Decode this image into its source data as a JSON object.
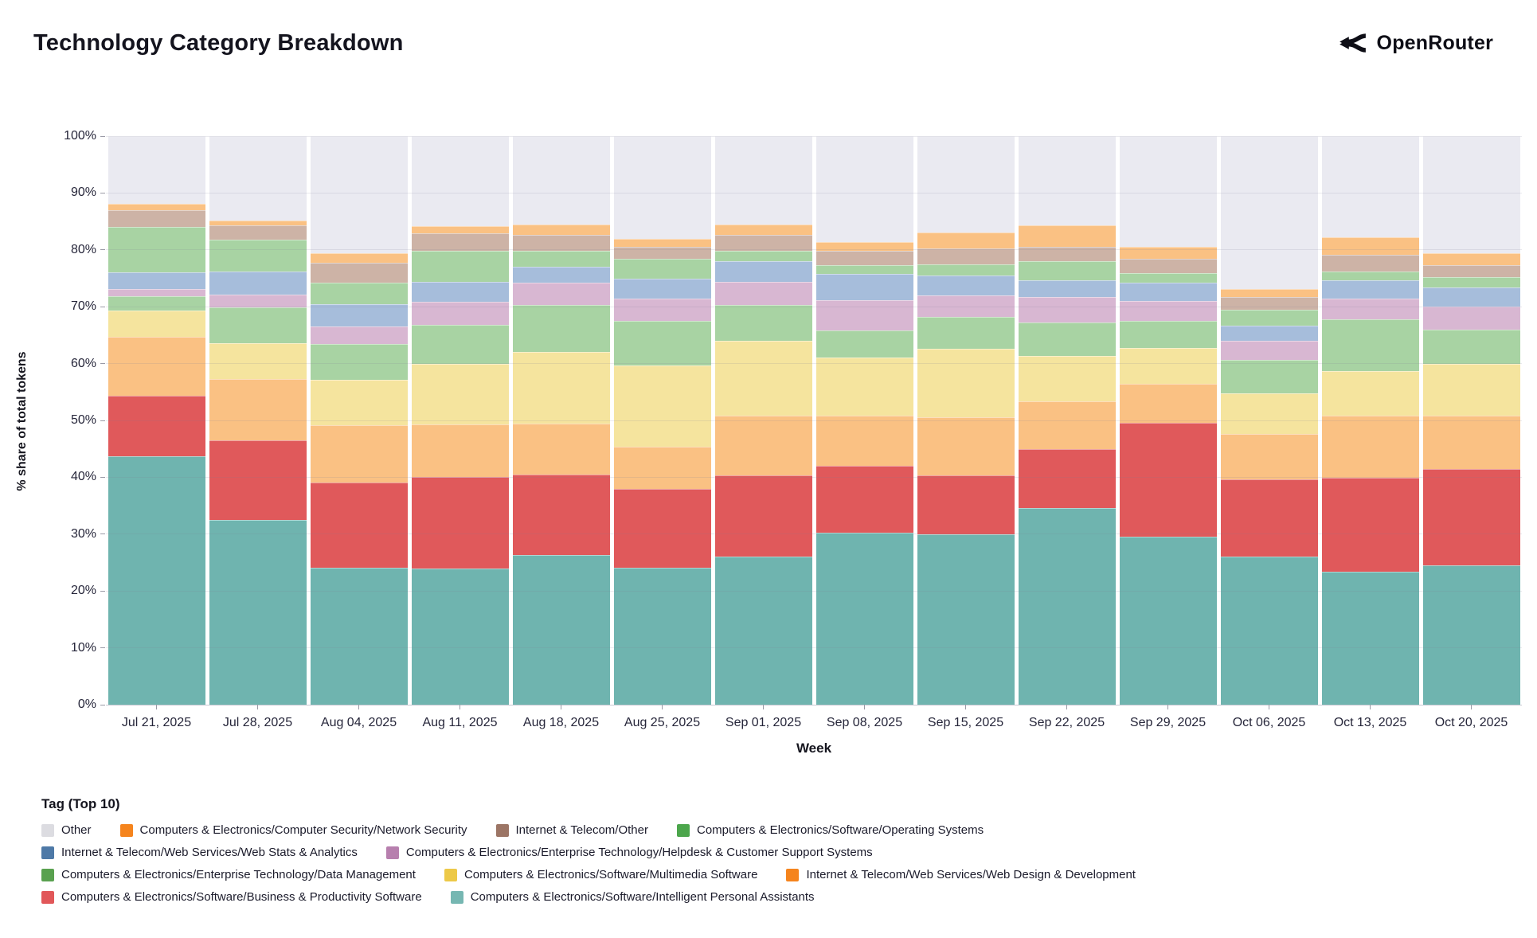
{
  "header": {
    "title": "Technology Category Breakdown",
    "brand": "OpenRouter"
  },
  "chart_data": {
    "type": "bar",
    "stacked": true,
    "normalized": true,
    "xlabel": "Week",
    "ylabel": "% share of total tokens",
    "ylim": [
      0,
      100
    ],
    "grid": true,
    "yticks": [
      "0%",
      "10%",
      "20%",
      "30%",
      "40%",
      "50%",
      "60%",
      "70%",
      "80%",
      "90%",
      "100%"
    ],
    "categories": [
      "Jul 21, 2025",
      "Jul 28, 2025",
      "Aug 04, 2025",
      "Aug 11, 2025",
      "Aug 18, 2025",
      "Aug 25, 2025",
      "Sep 01, 2025",
      "Sep 08, 2025",
      "Sep 15, 2025",
      "Sep 22, 2025",
      "Sep 29, 2025",
      "Oct 06, 2025",
      "Oct 13, 2025",
      "Oct 20, 2025"
    ],
    "series": [
      {
        "key": "ipa",
        "name": "Computers & Electronics/Software/Intelligent Personal Assistants",
        "legend_color": "#76B7B2",
        "bar_color": "#6FB4AF",
        "values": [
          43.7,
          32.5,
          24.1,
          24.0,
          26.3,
          24.1,
          26.0,
          30.3,
          30.0,
          34.6,
          29.5,
          26.0,
          23.4,
          24.5
        ]
      },
      {
        "key": "bp",
        "name": "Computers & Electronics/Software/Business & Productivity Software",
        "legend_color": "#E15759",
        "bar_color": "#E0595B",
        "values": [
          10.7,
          14.0,
          15.0,
          16.0,
          14.2,
          13.8,
          14.3,
          11.7,
          10.3,
          10.3,
          20.0,
          13.6,
          16.5,
          16.9
        ]
      },
      {
        "key": "wd",
        "name": "Internet & Telecom/Web Services/Web Design & Development",
        "legend_color": "#F5841D",
        "bar_color": "#FAC183",
        "values": [
          10.3,
          10.8,
          10.1,
          9.3,
          9.0,
          7.5,
          10.6,
          8.9,
          10.3,
          8.5,
          7.0,
          8.0,
          11.0,
          9.5
        ]
      },
      {
        "key": "mm",
        "name": "Computers & Electronics/Software/Multimedia Software",
        "legend_color": "#EDC948",
        "bar_color": "#F5E49E",
        "values": [
          4.6,
          6.3,
          8.0,
          10.7,
          12.6,
          14.3,
          13.1,
          10.1,
          12.0,
          8.0,
          6.3,
          7.1,
          7.8,
          9.1
        ]
      },
      {
        "key": "dm",
        "name": "Computers & Electronics/Enterprise Technology/Data Management",
        "legend_color": "#59A14F",
        "bar_color": "#A8D3A3",
        "values": [
          2.6,
          6.3,
          6.3,
          6.8,
          8.2,
          7.8,
          6.3,
          4.8,
          5.6,
          5.8,
          4.7,
          6.0,
          9.1,
          5.9
        ]
      },
      {
        "key": "hd",
        "name": "Computers & Electronics/Enterprise Technology/Helpdesk & Customer Support Systems",
        "legend_color": "#B77FAE",
        "bar_color": "#D8B7D2",
        "values": [
          1.2,
          2.2,
          3.0,
          4.0,
          3.9,
          3.9,
          4.1,
          5.4,
          3.8,
          4.5,
          3.5,
          3.3,
          3.6,
          4.1
        ]
      },
      {
        "key": "ws",
        "name": "Internet & Telecom/Web Services/Web Stats & Analytics",
        "legend_color": "#4E79A7",
        "bar_color": "#A6BDDB",
        "values": [
          2.9,
          4.1,
          4.0,
          3.6,
          2.8,
          3.5,
          3.6,
          4.5,
          3.5,
          3.0,
          3.2,
          2.6,
          3.3,
          3.4
        ]
      },
      {
        "key": "os",
        "name": "Computers & Electronics/Software/Operating Systems",
        "legend_color": "#4CA64C",
        "bar_color": "#A8D3A3",
        "values": [
          8.0,
          5.6,
          3.7,
          5.4,
          2.8,
          3.5,
          1.8,
          1.6,
          2.0,
          3.3,
          1.7,
          2.8,
          1.5,
          1.8
        ]
      },
      {
        "key": "ito",
        "name": "Internet & Telecom/Other",
        "legend_color": "#9C7565",
        "bar_color": "#CDB3A6",
        "textured": true,
        "values": [
          3.0,
          2.5,
          3.6,
          3.1,
          2.8,
          2.1,
          2.8,
          2.6,
          2.8,
          2.5,
          2.5,
          2.3,
          2.9,
          2.1
        ]
      },
      {
        "key": "ns",
        "name": "Computers & Electronics/Computer Security/Network Security",
        "legend_color": "#F5841D",
        "bar_color": "#FAC183",
        "values": [
          1.1,
          0.8,
          1.6,
          1.3,
          1.9,
          1.4,
          1.9,
          1.5,
          2.8,
          3.8,
          2.1,
          1.4,
          3.1,
          2.1
        ]
      },
      {
        "key": "other",
        "name": "Other",
        "legend_color": "#DCDCE1",
        "bar_color": "#EAEAF1",
        "values": [
          11.9,
          14.9,
          20.6,
          15.8,
          15.5,
          18.1,
          15.5,
          18.6,
          16.9,
          15.7,
          19.5,
          26.9,
          17.8,
          20.6
        ]
      }
    ]
  },
  "legend": {
    "title": "Tag (Top 10)",
    "rows": [
      [
        "other",
        "ns",
        "ito",
        "os"
      ],
      [
        "ws",
        "hd"
      ],
      [
        "dm",
        "mm",
        "wd"
      ],
      [
        "bp",
        "ipa"
      ]
    ]
  }
}
